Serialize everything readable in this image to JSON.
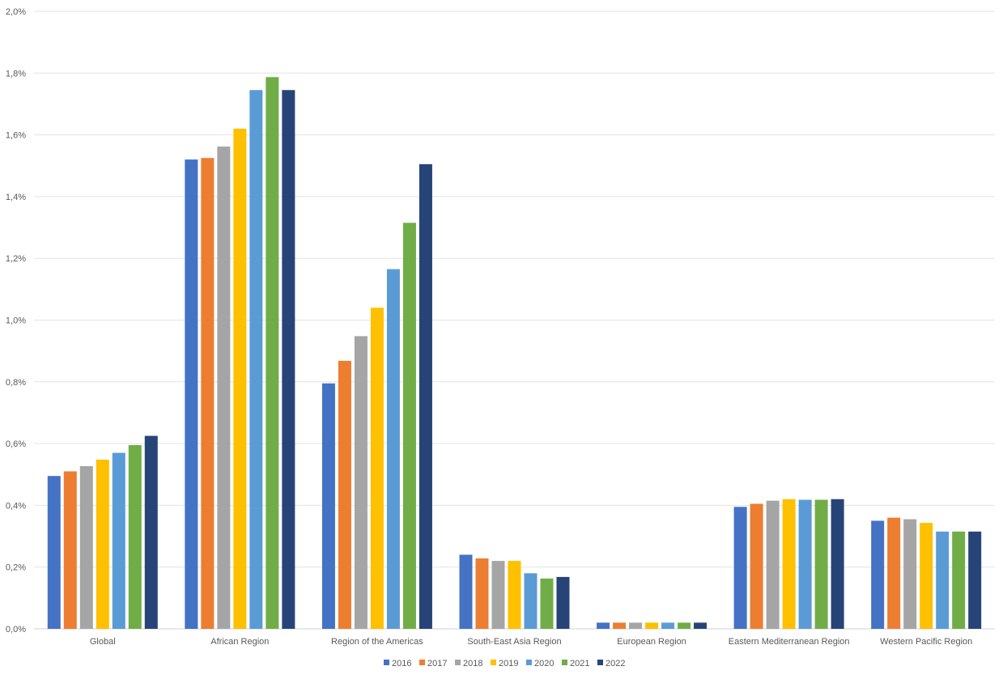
{
  "chart_data": {
    "type": "bar",
    "categories": [
      "Global",
      "African Region",
      "Region of the Americas",
      "South-East Asia Region",
      "European Region",
      "Eastern Mediterranean Region",
      "Western Pacific Region"
    ],
    "series": [
      {
        "name": "2016",
        "color": "#4472C4",
        "values": [
          0.495,
          1.52,
          0.795,
          0.24,
          0.02,
          0.395,
          0.35
        ]
      },
      {
        "name": "2017",
        "color": "#ED7D31",
        "values": [
          0.51,
          1.525,
          0.868,
          0.228,
          0.02,
          0.405,
          0.36
        ]
      },
      {
        "name": "2018",
        "color": "#A5A5A5",
        "values": [
          0.527,
          1.562,
          0.948,
          0.22,
          0.02,
          0.415,
          0.355
        ]
      },
      {
        "name": "2019",
        "color": "#FFC000",
        "values": [
          0.548,
          1.62,
          1.04,
          0.22,
          0.02,
          0.42,
          0.343
        ]
      },
      {
        "name": "2020",
        "color": "#5B9BD5",
        "values": [
          0.57,
          1.745,
          1.165,
          0.18,
          0.02,
          0.418,
          0.315
        ]
      },
      {
        "name": "2021",
        "color": "#70AD47",
        "values": [
          0.595,
          1.787,
          1.315,
          0.163,
          0.02,
          0.418,
          0.315
        ]
      },
      {
        "name": "2022",
        "color": "#264478",
        "values": [
          0.625,
          1.745,
          1.505,
          0.168,
          0.02,
          0.42,
          0.315
        ]
      }
    ],
    "ylim": [
      0,
      2.0
    ],
    "yticks": [
      0,
      0.2,
      0.4,
      0.6,
      0.8,
      1.0,
      1.2,
      1.4,
      1.6,
      1.8,
      2.0
    ],
    "ytick_labels": [
      "0,0%",
      "0,2%",
      "0,4%",
      "0,6%",
      "0,8%",
      "1,0%",
      "1,2%",
      "1,4%",
      "1,6%",
      "1,8%",
      "2,0%"
    ],
    "grid": true,
    "legend_position": "bottom"
  }
}
